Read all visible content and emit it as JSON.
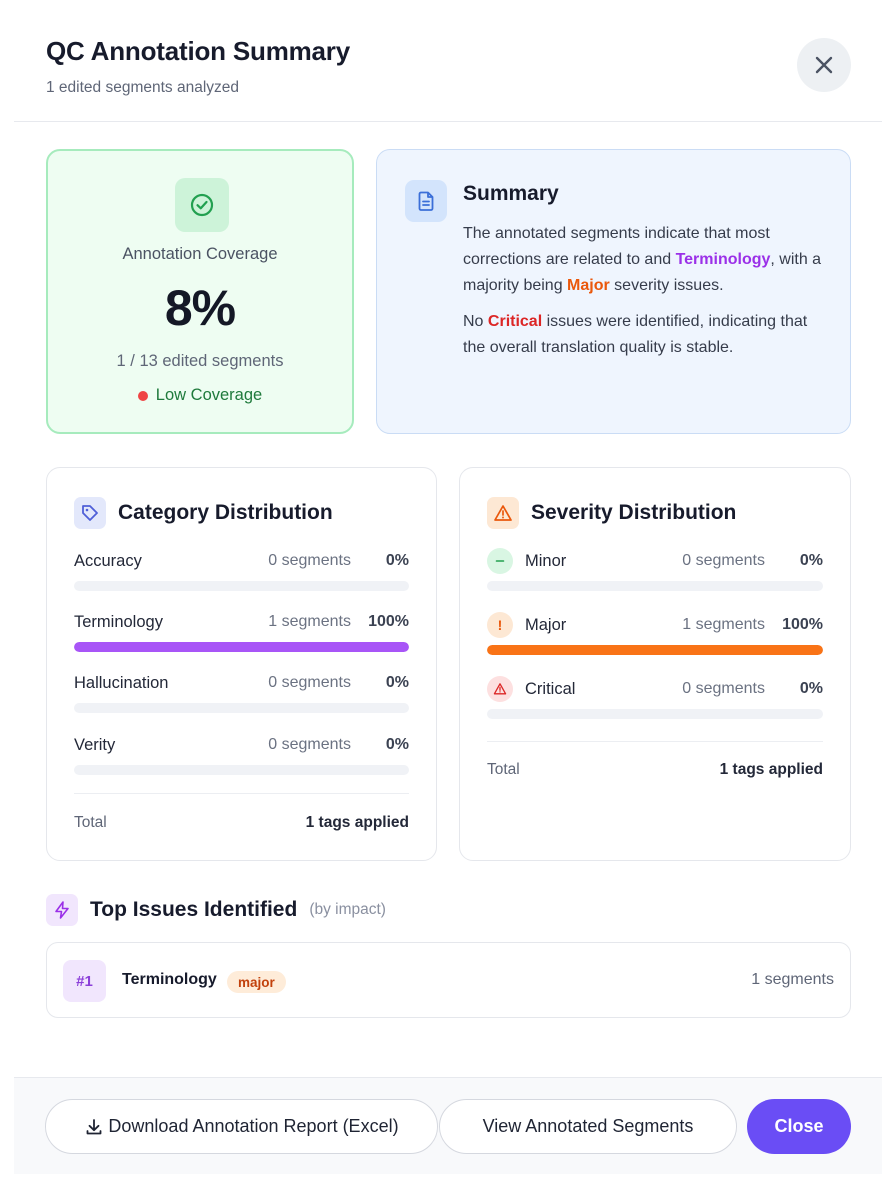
{
  "header": {
    "title": "QC Annotation Summary",
    "subtitle": "1 edited segments analyzed"
  },
  "coverage": {
    "label": "Annotation Coverage",
    "percent": "8%",
    "count": "1 / 13 edited segments",
    "status": "Low Coverage",
    "status_color": "#ef4444",
    "icon": "check-circle-icon"
  },
  "summary": {
    "title": "Summary",
    "icon": "document-icon",
    "p1": {
      "a": "The annotated segments indicate that most corrections are related to and ",
      "hl1": "Terminology",
      "b": ", with a majority being ",
      "hl2": "Major",
      "c": " severity issues."
    },
    "p2": {
      "a": "No ",
      "hl": "Critical",
      "b": " issues were identified, indicating that the overall translation quality is stable."
    }
  },
  "category": {
    "title": "Category Distribution",
    "icon": "tag-icon",
    "items": [
      {
        "label": "Accuracy",
        "count": "0 segments",
        "pct": "0%",
        "value": 0,
        "color": "#a855f7"
      },
      {
        "label": "Terminology",
        "count": "1 segments",
        "pct": "100%",
        "value": 100,
        "color": "#a855f7"
      },
      {
        "label": "Hallucination",
        "count": "0 segments",
        "pct": "0%",
        "value": 0,
        "color": "#a855f7"
      },
      {
        "label": "Verity",
        "count": "0 segments",
        "pct": "0%",
        "value": 0,
        "color": "#a855f7"
      }
    ],
    "total_label": "Total",
    "total_value": "1 tags applied"
  },
  "severity": {
    "title": "Severity Distribution",
    "icon": "warning-triangle-icon",
    "items": [
      {
        "label": "Minor",
        "count": "0 segments",
        "pct": "0%",
        "value": 0,
        "color": "#f97316",
        "icon": "minus-circle-icon"
      },
      {
        "label": "Major",
        "count": "1 segments",
        "pct": "100%",
        "value": 100,
        "color": "#f97316",
        "icon": "exclamation-circle-icon"
      },
      {
        "label": "Critical",
        "count": "0 segments",
        "pct": "0%",
        "value": 0,
        "color": "#f97316",
        "icon": "warning-triangle-icon"
      }
    ],
    "total_label": "Total",
    "total_value": "1 tags applied"
  },
  "issues": {
    "title": "Top Issues Identified",
    "subtitle": "(by impact)",
    "icon": "lightning-icon",
    "items": [
      {
        "rank": "#1",
        "name": "Terminology",
        "badge": "major",
        "count": "1 segments"
      }
    ]
  },
  "footer": {
    "download_label": "Download Annotation Report (Excel)",
    "view_label": "View Annotated Segments",
    "close_label": "Close"
  },
  "colors": {
    "accent": "#6a4df5",
    "category_bar": "#a855f7",
    "severity_bar": "#f97316"
  }
}
